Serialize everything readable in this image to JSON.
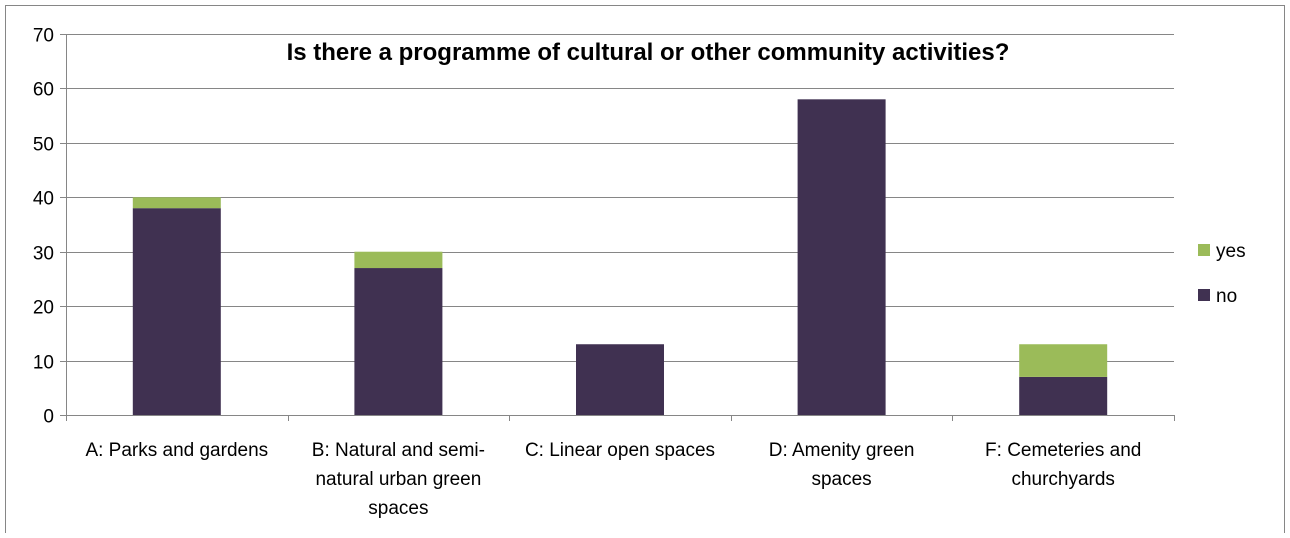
{
  "chart_data": {
    "type": "bar",
    "stacked": true,
    "title": "Is there a programme of cultural or other community activities?",
    "xlabel": "",
    "ylabel": "",
    "ylim": [
      0,
      70
    ],
    "yticks": [
      0,
      10,
      20,
      30,
      40,
      50,
      60,
      70
    ],
    "grid": true,
    "legend_position": "right",
    "categories": [
      [
        "A: Parks and gardens"
      ],
      [
        "B: Natural and semi-",
        "natural urban green",
        "spaces"
      ],
      [
        "C: Linear open spaces"
      ],
      [
        "D: Amenity green",
        "spaces"
      ],
      [
        "F: Cemeteries and",
        "churchyards"
      ]
    ],
    "series": [
      {
        "name": "no",
        "color": "#403151",
        "values": [
          38,
          27,
          13,
          58,
          7
        ]
      },
      {
        "name": "yes",
        "color": "#9BBB59",
        "values": [
          2,
          3,
          0,
          0,
          6
        ]
      }
    ],
    "legend_order": [
      "yes",
      "no"
    ]
  }
}
